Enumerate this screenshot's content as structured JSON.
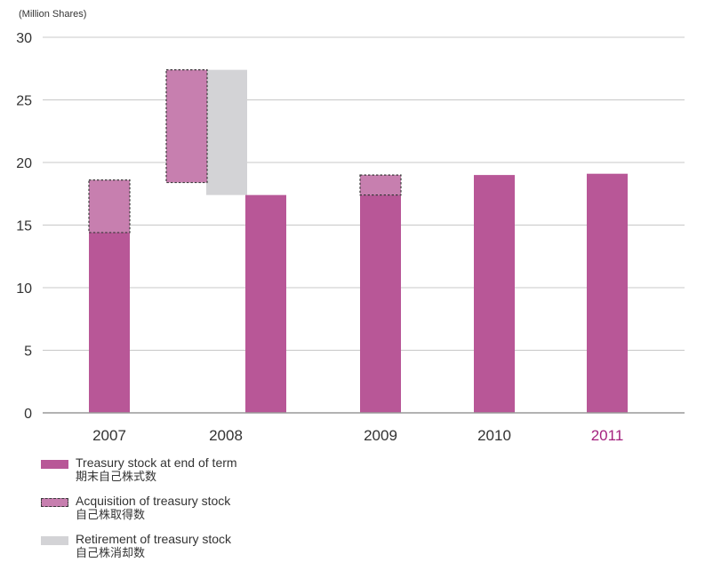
{
  "unit_label": "(Million Shares)",
  "colors": {
    "treasury": "#b85797",
    "acquisition": "#c77faf",
    "retirement": "#d3d3d6",
    "highlight_year": "#a4217f",
    "axis": "#999999",
    "grid": "#c8c8c8"
  },
  "chart_data": {
    "type": "bar",
    "categories": [
      "2007",
      "2008",
      "2009",
      "2010",
      "2011"
    ],
    "highlight_category": "2011",
    "ylim": [
      0,
      30
    ],
    "yticks": [
      "0",
      "5",
      "10",
      "15",
      "20",
      "25",
      "30"
    ],
    "series": [
      {
        "name": "Treasury stock at end of term 期末自己株式数",
        "values": [
          14.4,
          17.4,
          17.4,
          19.0,
          19.1
        ]
      },
      {
        "name": "Acquisition of treasury stock 自己株取得数",
        "ranges": [
          [
            14.4,
            18.6
          ],
          [
            18.4,
            27.4
          ],
          [
            17.4,
            19.0
          ],
          null,
          null
        ]
      },
      {
        "name": "Retirement of treasury stock 自己株消却数",
        "ranges": [
          null,
          [
            17.4,
            27.4
          ],
          null,
          null,
          null
        ]
      }
    ]
  },
  "legend": [
    {
      "key": "treasury",
      "label": "Treasury stock at end of term",
      "sub": "期末自己株式数"
    },
    {
      "key": "acquisition",
      "label": "Acquisition of treasury stock",
      "sub": "自己株取得数"
    },
    {
      "key": "retirement",
      "label": "Retirement of treasury stock",
      "sub": "自己株消却数"
    }
  ]
}
